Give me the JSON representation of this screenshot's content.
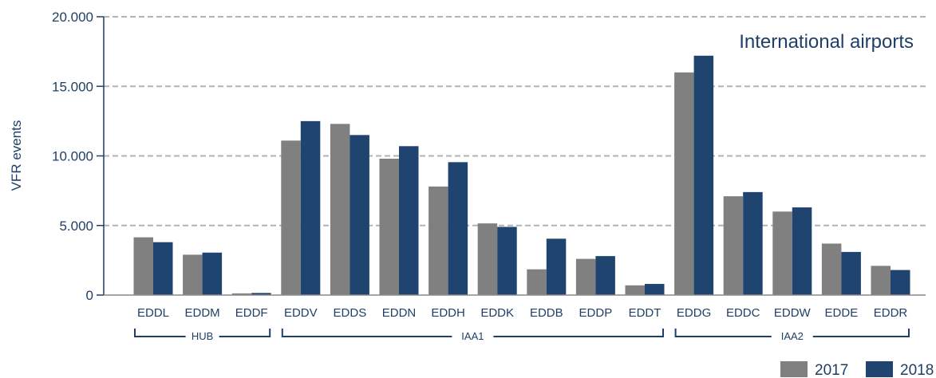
{
  "chart_data": {
    "type": "bar",
    "title": "International airports",
    "ylabel": "VFR events",
    "ylim": [
      0,
      20000
    ],
    "yticks": [
      {
        "value": 0,
        "label": "0"
      },
      {
        "value": 5000,
        "label": "5.000"
      },
      {
        "value": 10000,
        "label": "10.000"
      },
      {
        "value": 15000,
        "label": "15.000"
      },
      {
        "value": 20000,
        "label": "20.000"
      }
    ],
    "grid": true,
    "legend": "bottom-right",
    "categories": [
      "EDDL",
      "EDDM",
      "EDDF",
      "EDDV",
      "EDDS",
      "EDDN",
      "EDDH",
      "EDDK",
      "EDDB",
      "EDDP",
      "EDDT",
      "EDDG",
      "EDDC",
      "EDDW",
      "EDDE",
      "EDDR"
    ],
    "series": [
      {
        "name": "2017",
        "color": "#808080",
        "values": [
          4150,
          2900,
          120,
          11100,
          12300,
          9800,
          7800,
          5150,
          1850,
          2600,
          700,
          16000,
          7100,
          6000,
          3700,
          2100
        ]
      },
      {
        "name": "2018",
        "color": "#1f4470",
        "values": [
          3800,
          3050,
          150,
          12500,
          11500,
          10700,
          9550,
          4900,
          4050,
          2800,
          800,
          17200,
          7400,
          6300,
          3100,
          1800
        ]
      }
    ],
    "groups": [
      {
        "label": "HUB",
        "start": 0,
        "end": 2
      },
      {
        "label": "IAA1",
        "start": 3,
        "end": 10
      },
      {
        "label": "IAA2",
        "start": 11,
        "end": 15
      }
    ]
  }
}
